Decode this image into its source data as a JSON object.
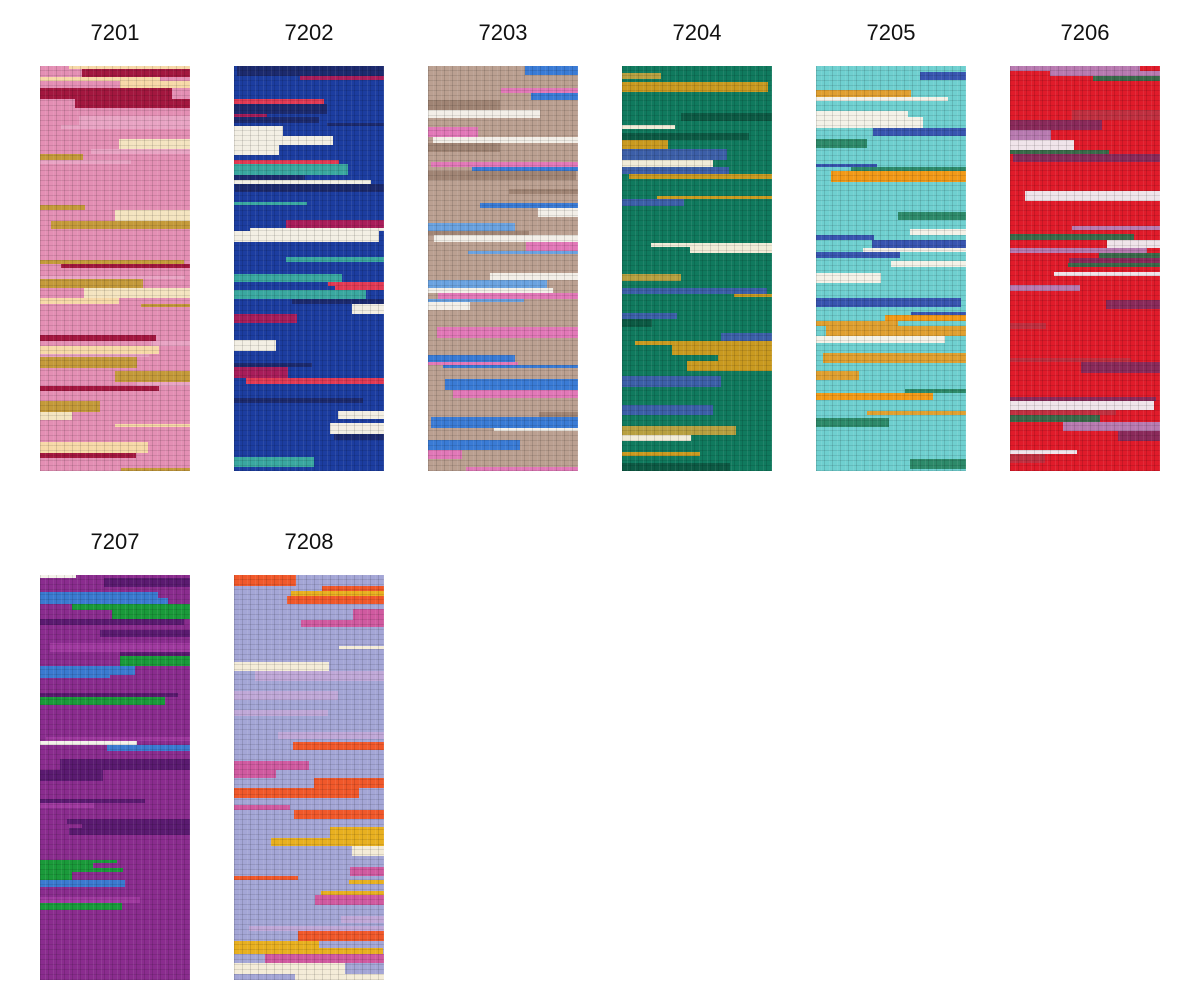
{
  "swatches": [
    {
      "code": "7201",
      "base": "#e48fb4",
      "colors": [
        "#a3173f",
        "#f4e4c0",
        "#c49a3a",
        "#e9a4c4",
        "#f7d9a8"
      ]
    },
    {
      "code": "7202",
      "base": "#1c3da0",
      "colors": [
        "#e23a54",
        "#f3efe4",
        "#3aa8a0",
        "#a81d5a",
        "#1c2a6e"
      ]
    },
    {
      "code": "7203",
      "base": "#bba091",
      "colors": [
        "#3a7bd5",
        "#f3efe8",
        "#e278b8",
        "#6aa2e0",
        "#a08474"
      ]
    },
    {
      "code": "7204",
      "base": "#107a5e",
      "colors": [
        "#c99a20",
        "#f2ecd8",
        "#3c5fa8",
        "#0c5a44",
        "#b8a040"
      ]
    },
    {
      "code": "7205",
      "base": "#6fd0d0",
      "colors": [
        "#f29a18",
        "#f4f2e8",
        "#2d8a6a",
        "#3855b0",
        "#e0a030"
      ]
    },
    {
      "code": "7206",
      "base": "#e01b2a",
      "colors": [
        "#b87ab0",
        "#f0e4ea",
        "#3a6a4a",
        "#8a2a5a",
        "#c03040"
      ]
    },
    {
      "code": "7207",
      "base": "#8a2c8e",
      "colors": [
        "#1a9a3a",
        "#f4f2ea",
        "#3a7ad0",
        "#5a1a70",
        "#a03aa0"
      ]
    },
    {
      "code": "7208",
      "base": "#a4a6d6",
      "colors": [
        "#e8b020",
        "#f0582a",
        "#f4ecd8",
        "#d05aa0",
        "#c0a8d8"
      ]
    }
  ]
}
